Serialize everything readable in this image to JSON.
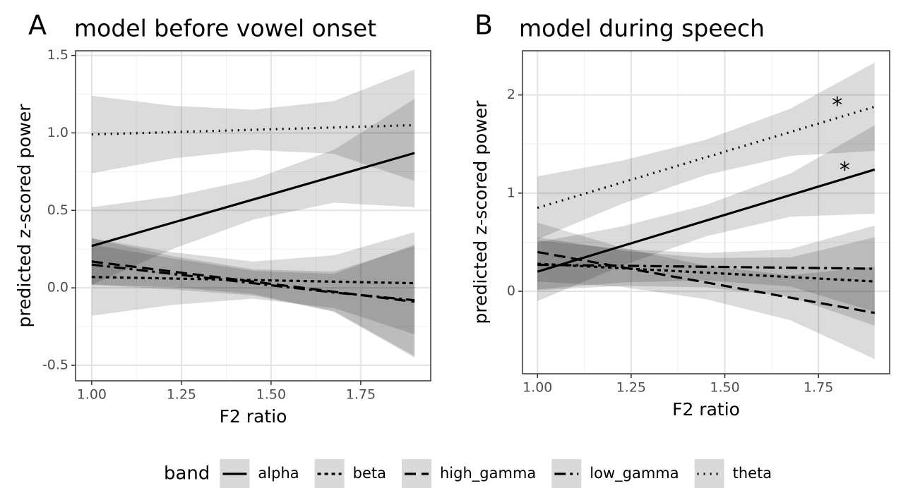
{
  "chart_data": [
    {
      "type": "line",
      "panel_label": "A",
      "title": "model before vowel onset",
      "x_label": "F2 ratio",
      "y_label": "predicted z-scored power",
      "xlim": [
        0.955,
        1.945
      ],
      "ylim": [
        -0.6,
        1.53
      ],
      "xticks": [
        {
          "value": 1.0,
          "label": "1.00"
        },
        1.25,
        {
          "value": 1.5,
          "label": "1.50"
        },
        1.75
      ],
      "yticks": [
        -0.5,
        {
          "value": 0.0,
          "label": "0.0"
        },
        0.5,
        {
          "value": 1.0,
          "label": "1.0"
        },
        1.5
      ],
      "grid": true,
      "x": [
        1.0,
        1.225,
        1.45,
        1.675,
        1.9
      ],
      "series": [
        {
          "name": "alpha",
          "color": "#000000",
          "linetype": "solid",
          "values": [
            0.27,
            0.42,
            0.57,
            0.72,
            0.87
          ],
          "upper": [
            0.52,
            0.59,
            0.7,
            0.89,
            1.22
          ],
          "lower": [
            0.02,
            0.25,
            0.44,
            0.55,
            0.52
          ]
        },
        {
          "name": "beta",
          "color": "#000000",
          "linetype": "dashed",
          "values": [
            0.07,
            0.06,
            0.05,
            0.04,
            0.03
          ],
          "upper": [
            0.32,
            0.23,
            0.17,
            0.21,
            0.36
          ],
          "lower": [
            -0.18,
            -0.11,
            -0.07,
            -0.13,
            -0.3
          ]
        },
        {
          "name": "high_gamma",
          "color": "#000000",
          "linetype": "longdash",
          "values": [
            0.17,
            0.105,
            0.04,
            -0.025,
            -0.09
          ],
          "upper": [
            0.32,
            0.205,
            0.12,
            0.105,
            0.27
          ],
          "lower": [
            0.02,
            0.005,
            -0.04,
            -0.155,
            -0.45
          ]
        },
        {
          "name": "low_gamma",
          "color": "#000000",
          "linetype": "dotdash",
          "values": [
            0.15,
            0.09,
            0.03,
            -0.03,
            -0.08
          ],
          "upper": [
            0.28,
            0.19,
            0.11,
            0.09,
            0.28
          ],
          "lower": [
            0.02,
            -0.01,
            -0.05,
            -0.15,
            -0.44
          ]
        },
        {
          "name": "theta",
          "color": "#000000",
          "linetype": "dotted",
          "values": [
            0.99,
            1.005,
            1.02,
            1.035,
            1.05
          ],
          "upper": [
            1.24,
            1.175,
            1.15,
            1.205,
            1.41
          ],
          "lower": [
            0.74,
            0.835,
            0.89,
            0.865,
            0.69
          ]
        }
      ],
      "annotations": []
    },
    {
      "type": "line",
      "panel_label": "B",
      "title": "model during speech",
      "x_label": "F2 ratio",
      "y_label": "predicted z-scored power",
      "xlim": [
        0.96,
        1.94
      ],
      "ylim": [
        -0.84,
        2.45
      ],
      "xticks": [
        {
          "value": 1.0,
          "label": "1.00"
        },
        1.25,
        {
          "value": 1.5,
          "label": "1.50"
        },
        1.75
      ],
      "yticks": [
        0,
        1,
        2
      ],
      "grid": true,
      "x": [
        1.0,
        1.225,
        1.45,
        1.675,
        1.9
      ],
      "series": [
        {
          "name": "alpha",
          "color": "#000000",
          "linetype": "solid",
          "values": [
            0.2,
            0.46,
            0.72,
            0.98,
            1.24
          ],
          "upper": [
            0.5,
            0.66,
            0.88,
            1.2,
            1.69
          ],
          "lower": [
            -0.1,
            0.26,
            0.56,
            0.76,
            0.79
          ]
        },
        {
          "name": "beta",
          "color": "#000000",
          "linetype": "dashed",
          "values": [
            0.28,
            0.235,
            0.19,
            0.145,
            0.1
          ],
          "upper": [
            0.55,
            0.415,
            0.34,
            0.345,
            0.55
          ],
          "lower": [
            0.01,
            0.055,
            0.04,
            -0.055,
            -0.35
          ]
        },
        {
          "name": "high_gamma",
          "color": "#000000",
          "linetype": "longdash",
          "values": [
            0.4,
            0.245,
            0.09,
            -0.065,
            -0.22
          ],
          "upper": [
            0.7,
            0.445,
            0.26,
            0.165,
            0.25
          ],
          "lower": [
            0.1,
            0.045,
            -0.08,
            -0.295,
            -0.69
          ]
        },
        {
          "name": "low_gamma",
          "color": "#000000",
          "linetype": "dotdash",
          "values": [
            0.27,
            0.26,
            0.25,
            0.24,
            0.23
          ],
          "upper": [
            0.52,
            0.43,
            0.39,
            0.43,
            0.67
          ],
          "lower": [
            0.02,
            0.09,
            0.11,
            0.05,
            -0.21
          ]
        },
        {
          "name": "theta",
          "color": "#000000",
          "linetype": "dotted",
          "values": [
            0.85,
            1.1075,
            1.365,
            1.6225,
            1.88
          ],
          "upper": [
            1.17,
            1.33,
            1.545,
            1.86,
            2.33
          ],
          "lower": [
            0.53,
            0.89,
            1.185,
            1.38,
            1.43
          ]
        }
      ],
      "annotations": [
        {
          "text": "*",
          "x": 1.8,
          "y": 1.93
        },
        {
          "text": "*",
          "x": 1.82,
          "y": 1.27
        }
      ]
    }
  ],
  "legend": {
    "title": "band"
  }
}
